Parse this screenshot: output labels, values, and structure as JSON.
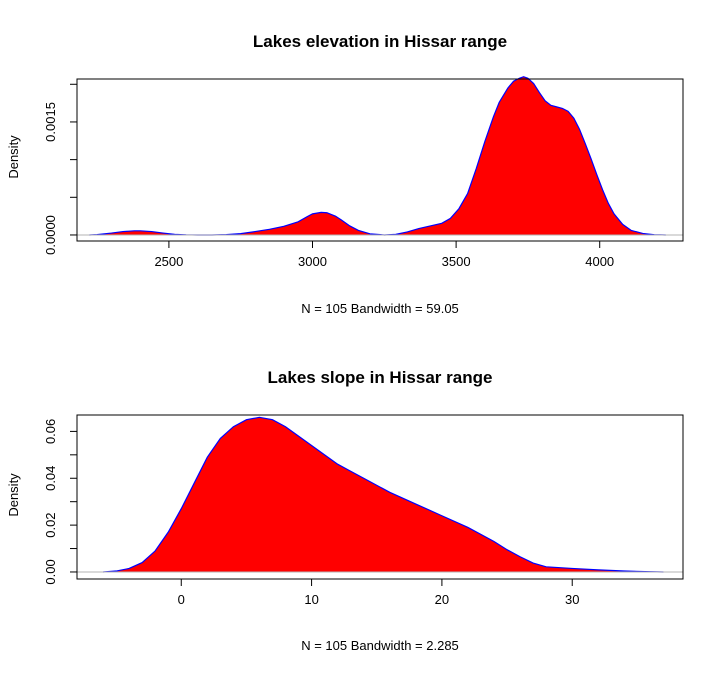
{
  "chart_data": [
    {
      "type": "area",
      "title": "Lakes elevation in Hissar range",
      "ylabel": "Density",
      "xlabel": "N = 105   Bandwidth = 59.05",
      "xlim": [
        2180,
        4290
      ],
      "ylim": [
        -8e-05,
        0.00207
      ],
      "x_ticks": [
        2500,
        3000,
        3500,
        4000
      ],
      "x_tick_labels": [
        "2500",
        "3000",
        "3500",
        "4000"
      ],
      "y_ticks": [
        0.0,
        0.0015
      ],
      "y_tick_labels": [
        "0.0000",
        "0.0015"
      ],
      "y_minor_ticks": [
        0.0005,
        0.001,
        0.002
      ],
      "grid": false,
      "fill_color": "#ff0000",
      "line_color": "#0000ff",
      "baseline_color": "#b3b3b3",
      "x": [
        2223,
        2250,
        2300,
        2340,
        2380,
        2400,
        2440,
        2480,
        2520,
        2560,
        2600,
        2650,
        2700,
        2750,
        2800,
        2850,
        2900,
        2950,
        2980,
        3000,
        3030,
        3050,
        3080,
        3100,
        3130,
        3160,
        3200,
        3250,
        3290,
        3330,
        3370,
        3410,
        3450,
        3480,
        3510,
        3540,
        3570,
        3600,
        3630,
        3650,
        3680,
        3700,
        3720,
        3735,
        3750,
        3770,
        3790,
        3810,
        3830,
        3850,
        3870,
        3890,
        3910,
        3930,
        3950,
        3970,
        3990,
        4010,
        4030,
        4050,
        4080,
        4110,
        4150,
        4190,
        4230
      ],
      "y": [
        0.0,
        5e-06,
        2.5e-05,
        4.5e-05,
        5.5e-05,
        5.5e-05,
        4.5e-05,
        2.5e-05,
        8e-06,
        2e-06,
        0.0,
        0.0,
        5e-06,
        1.8e-05,
        4.5e-05,
        7.5e-05,
        0.000115,
        0.000175,
        0.00024,
        0.00028,
        0.0003,
        0.000295,
        0.00025,
        0.0002,
        0.00012,
        6e-05,
        1.5e-05,
        0.0,
        8e-06,
        4e-05,
        8.5e-05,
        0.00012,
        0.000155,
        0.00022,
        0.00035,
        0.00055,
        0.00088,
        0.00124,
        0.00157,
        0.00176,
        0.00195,
        0.00204,
        0.00208,
        0.0021,
        0.00208,
        0.00201,
        0.00189,
        0.00178,
        0.00172,
        0.0017,
        0.00168,
        0.00164,
        0.00155,
        0.0014,
        0.00121,
        0.00101,
        0.0008,
        0.0006,
        0.00042,
        0.00028,
        0.00014,
        6e-05,
        2e-05,
        4e-06,
        0.0
      ]
    },
    {
      "type": "area",
      "title": "Lakes slope in Hissar range",
      "ylabel": "Density",
      "xlabel": "N = 105   Bandwidth = 2.285",
      "xlim": [
        -8.0,
        38.5
      ],
      "ylim": [
        -0.003,
        0.067
      ],
      "x_ticks": [
        0,
        10,
        20,
        30
      ],
      "x_tick_labels": [
        "0",
        "10",
        "20",
        "30"
      ],
      "y_ticks": [
        0.0,
        0.02,
        0.04,
        0.06
      ],
      "y_tick_labels": [
        "0.00",
        "0.02",
        "0.04",
        "0.06"
      ],
      "y_minor_ticks": [
        0.01,
        0.03,
        0.05
      ],
      "grid": false,
      "fill_color": "#ff0000",
      "line_color": "#0000ff",
      "baseline_color": "#b3b3b3",
      "x": [
        -6.0,
        -5.0,
        -4.0,
        -3.0,
        -2.0,
        -1.0,
        0.0,
        1.0,
        2.0,
        3.0,
        4.0,
        5.0,
        6.0,
        7.0,
        8.0,
        9.0,
        10.0,
        11.0,
        12.0,
        13.0,
        14.0,
        16.0,
        18.0,
        20.0,
        22.0,
        24.0,
        25.0,
        26.0,
        27.0,
        28.0,
        30.0,
        32.0,
        34.0,
        36.0,
        37.0
      ],
      "y": [
        0.0,
        0.0004,
        0.0015,
        0.004,
        0.009,
        0.017,
        0.027,
        0.038,
        0.049,
        0.057,
        0.062,
        0.065,
        0.066,
        0.065,
        0.062,
        0.058,
        0.054,
        0.05,
        0.046,
        0.043,
        0.04,
        0.034,
        0.029,
        0.024,
        0.019,
        0.013,
        0.0095,
        0.0065,
        0.0038,
        0.0022,
        0.0015,
        0.0009,
        0.0004,
        0.0001,
        0.0
      ]
    }
  ]
}
